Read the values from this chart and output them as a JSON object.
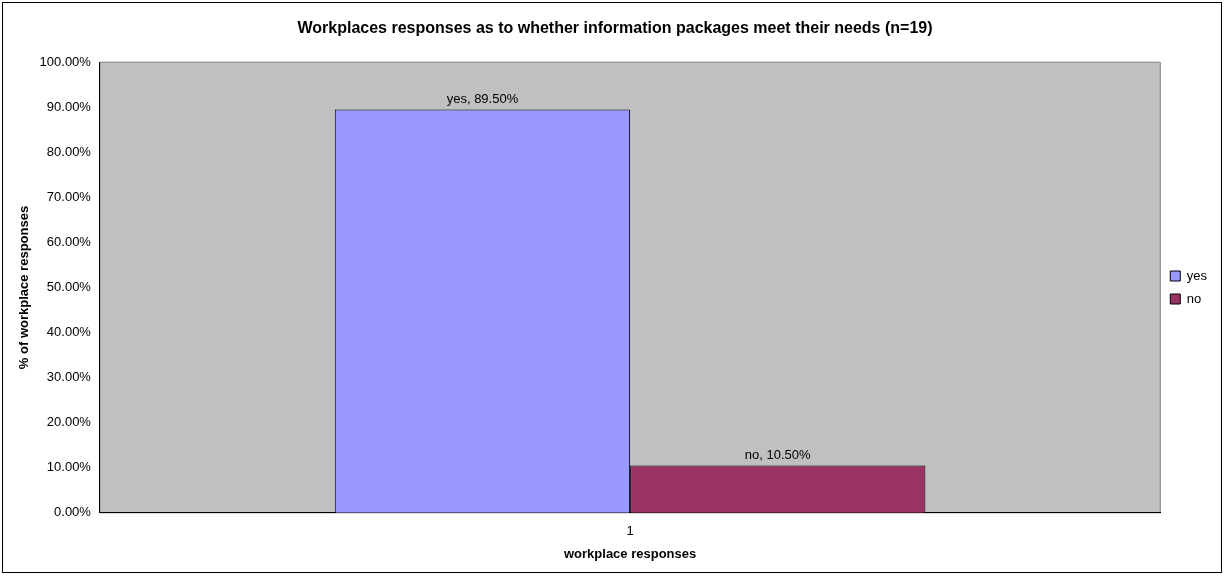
{
  "chart_data": {
    "type": "bar",
    "title": "Workplaces responses as to whether information packages meet their needs (n=19)",
    "xlabel": "workplace responses",
    "ylabel": "% of workplace responses",
    "categories": [
      "1"
    ],
    "series": [
      {
        "name": "yes",
        "color": "#9999ff",
        "values": [
          89.5
        ],
        "value_labels": [
          "yes, 89.50%"
        ]
      },
      {
        "name": "no",
        "color": "#993366",
        "values": [
          10.5
        ],
        "value_labels": [
          "no, 10.50%"
        ]
      }
    ],
    "ylim": [
      0,
      100
    ],
    "yticks": [
      {
        "value": 0,
        "label": "0.00%"
      },
      {
        "value": 10,
        "label": "10.00%"
      },
      {
        "value": 20,
        "label": "20.00%"
      },
      {
        "value": 30,
        "label": "30.00%"
      },
      {
        "value": 40,
        "label": "40.00%"
      },
      {
        "value": 50,
        "label": "50.00%"
      },
      {
        "value": 60,
        "label": "60.00%"
      },
      {
        "value": 70,
        "label": "70.00%"
      },
      {
        "value": 80,
        "label": "80.00%"
      },
      {
        "value": 90,
        "label": "90.00%"
      },
      {
        "value": 100,
        "label": "100.00%"
      }
    ],
    "grid": false,
    "legend": "right"
  }
}
